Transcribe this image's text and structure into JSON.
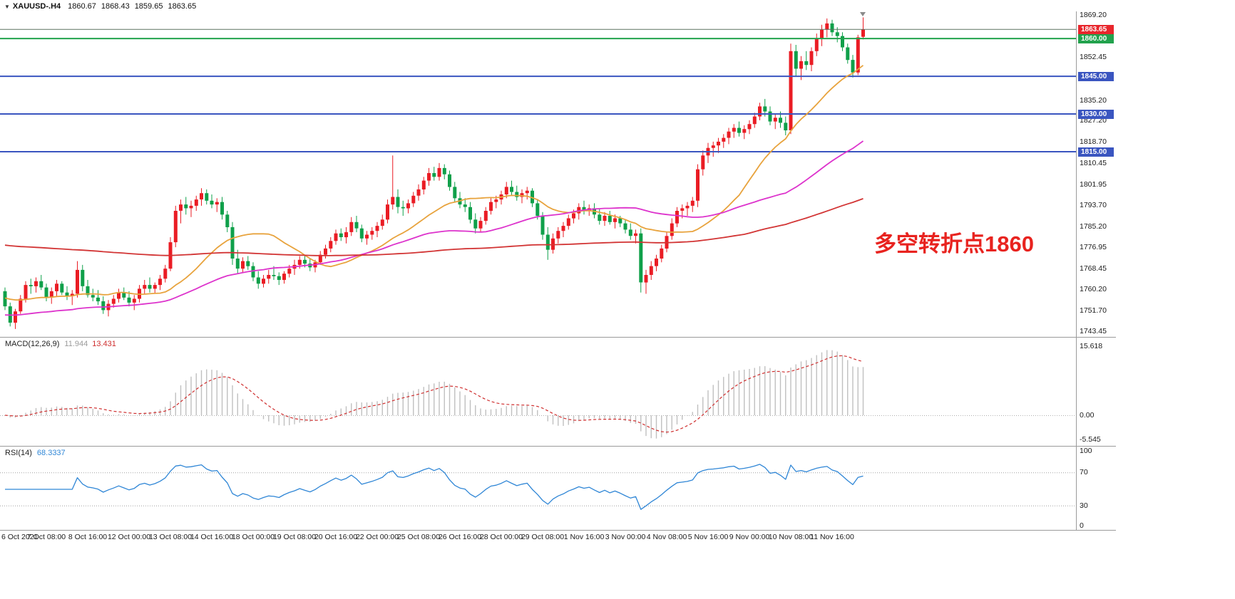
{
  "window": {
    "dropdown_glyph": "▼",
    "symbol": "XAUUSD-.H4",
    "open": "1860.67",
    "high": "1868.43",
    "low": "1859.65",
    "close": "1863.65"
  },
  "annotation": {
    "text": "多空转折点1860",
    "color": "#e8231f"
  },
  "chart_data": {
    "type": "candlestick",
    "symbol": "XAUUSD-",
    "timeframe": "H4",
    "title": "XAUUSD-.H4 1860.67 1868.43 1859.65 1863.65",
    "ylim": [
      1742.2,
      1870.8
    ],
    "grid": false,
    "colors": {
      "up": "#ea1c24",
      "down": "#0fa04a"
    },
    "price_ticks": [
      "1869.20",
      "1852.45",
      "1835.20",
      "1827.20",
      "1818.70",
      "1810.45",
      "1801.95",
      "1793.70",
      "1785.20",
      "1776.95",
      "1768.45",
      "1760.20",
      "1751.70",
      "1743.45"
    ],
    "badges": [
      {
        "text": "1863.65",
        "price": 1863.65,
        "color": "#e8262c"
      },
      {
        "text": "1860.00",
        "price": 1860.0,
        "color": "#22a24d"
      },
      {
        "text": "1845.00",
        "price": 1845.0,
        "color": "#3a55c0"
      },
      {
        "text": "1830.00",
        "price": 1830.0,
        "color": "#3a55c0"
      },
      {
        "text": "1815.00",
        "price": 1815.0,
        "color": "#3a55c0"
      }
    ],
    "hlines": [
      {
        "name": "bid-line-1863.65",
        "price": 1863.65,
        "color": "#5c7260",
        "width": 1
      },
      {
        "name": "hline-1860",
        "price": 1860.0,
        "color": "#22a24d",
        "width": 2
      },
      {
        "name": "hline-1845",
        "price": 1845.0,
        "color": "#3a55c0",
        "width": 2
      },
      {
        "name": "hline-1830",
        "price": 1830.0,
        "color": "#3a55c0",
        "width": 2
      },
      {
        "name": "hline-1815",
        "price": 1815.0,
        "color": "#3a55c0",
        "width": 2
      }
    ],
    "moving_averages": [
      {
        "period": 20,
        "color": "#e8a33d",
        "prehistory": 1757
      },
      {
        "period": 50,
        "color": "#dd33cc",
        "prehistory": 1750
      },
      {
        "period": 144,
        "color": "#d23434",
        "prehistory": 1778
      }
    ],
    "time_labels": [
      "6 Oct 2021",
      "7 Oct 08:00",
      "8 Oct 16:00",
      "12 Oct 00:00",
      "13 Oct 08:00",
      "14 Oct 16:00",
      "18 Oct 00:00",
      "19 Oct 08:00",
      "20 Oct 16:00",
      "22 Oct 00:00",
      "25 Oct 08:00",
      "26 Oct 16:00",
      "28 Oct 00:00",
      "29 Oct 08:00",
      "1 Nov 16:00",
      "3 Nov 00:00",
      "4 Nov 08:00",
      "5 Nov 16:00",
      "9 Nov 00:00",
      "10 Nov 08:00",
      "11 Nov 16:00"
    ],
    "bars_per_label": 8,
    "candles": [
      [
        1759.5,
        1761,
        1752,
        1753.5
      ],
      [
        1753.5,
        1755,
        1745.5,
        1747
      ],
      [
        1747,
        1752.5,
        1744.5,
        1751.5
      ],
      [
        1751.5,
        1758,
        1750.5,
        1756.5
      ],
      [
        1756.5,
        1763.5,
        1755,
        1762
      ],
      [
        1762,
        1764.5,
        1758.5,
        1761.5
      ],
      [
        1761.5,
        1765,
        1759,
        1763.5
      ],
      [
        1763.5,
        1766,
        1760,
        1761
      ],
      [
        1761,
        1762.5,
        1755.5,
        1757
      ],
      [
        1757,
        1761,
        1754.5,
        1759.5
      ],
      [
        1759.5,
        1764,
        1757.5,
        1762.5
      ],
      [
        1762.5,
        1763.5,
        1758,
        1759
      ],
      [
        1759,
        1761.5,
        1756,
        1757.5
      ],
      [
        1757.5,
        1760,
        1754,
        1758.5
      ],
      [
        1758.5,
        1771.5,
        1757,
        1768
      ],
      [
        1768,
        1770,
        1759.5,
        1761.5
      ],
      [
        1761.5,
        1764,
        1757,
        1758
      ],
      [
        1758,
        1760.5,
        1755.5,
        1757
      ],
      [
        1757,
        1760,
        1754,
        1755.5
      ],
      [
        1755.5,
        1757.5,
        1750.5,
        1752
      ],
      [
        1752,
        1756,
        1749.5,
        1754.5
      ],
      [
        1754.5,
        1758,
        1753,
        1756.5
      ],
      [
        1756.5,
        1760.5,
        1755,
        1759
      ],
      [
        1759,
        1761,
        1756,
        1757
      ],
      [
        1757,
        1759.5,
        1753.5,
        1755
      ],
      [
        1755,
        1758,
        1752,
        1756.5
      ],
      [
        1756.5,
        1762,
        1755,
        1760.5
      ],
      [
        1760.5,
        1764,
        1758.5,
        1762
      ],
      [
        1762,
        1765,
        1759,
        1760.5
      ],
      [
        1760.5,
        1763,
        1758.5,
        1762
      ],
      [
        1762,
        1766,
        1760,
        1764.5
      ],
      [
        1764.5,
        1770,
        1763,
        1768.5
      ],
      [
        1768.5,
        1781,
        1767.5,
        1779
      ],
      [
        1779,
        1793.5,
        1777,
        1791.5
      ],
      [
        1791.5,
        1796,
        1786.5,
        1794
      ],
      [
        1794,
        1797,
        1790,
        1792.5
      ],
      [
        1792.5,
        1795.5,
        1789,
        1793.5
      ],
      [
        1793.5,
        1797.5,
        1791.5,
        1796
      ],
      [
        1796,
        1800.5,
        1793.5,
        1798.5
      ],
      [
        1798.5,
        1800,
        1794,
        1795.5
      ],
      [
        1795.5,
        1798,
        1792.5,
        1794
      ],
      [
        1794,
        1796.5,
        1791,
        1795
      ],
      [
        1795,
        1797,
        1788,
        1790
      ],
      [
        1790,
        1791.5,
        1783,
        1785
      ],
      [
        1785,
        1787,
        1770,
        1772.5
      ],
      [
        1772.5,
        1776,
        1766.5,
        1768.5
      ],
      [
        1768.5,
        1773,
        1767,
        1771.5
      ],
      [
        1771.5,
        1773.5,
        1768,
        1769.5
      ],
      [
        1769.5,
        1771,
        1763.5,
        1765
      ],
      [
        1765,
        1767.5,
        1760.5,
        1762.5
      ],
      [
        1762.5,
        1766,
        1761,
        1764.5
      ],
      [
        1764.5,
        1768,
        1762.5,
        1766
      ],
      [
        1766,
        1769.5,
        1764,
        1765.5
      ],
      [
        1765.5,
        1767,
        1762,
        1764
      ],
      [
        1764,
        1767.5,
        1762.5,
        1766.5
      ],
      [
        1766.5,
        1770,
        1765,
        1768.5
      ],
      [
        1768.5,
        1772,
        1766,
        1770
      ],
      [
        1770,
        1773.5,
        1768.5,
        1772
      ],
      [
        1772,
        1774,
        1769,
        1770.5
      ],
      [
        1770.5,
        1772.5,
        1767.5,
        1769
      ],
      [
        1769,
        1772,
        1767,
        1771
      ],
      [
        1771,
        1775.5,
        1770,
        1774
      ],
      [
        1774,
        1778,
        1772.5,
        1776.5
      ],
      [
        1776.5,
        1781,
        1775,
        1779.5
      ],
      [
        1779.5,
        1784,
        1778,
        1782.5
      ],
      [
        1782.5,
        1784.5,
        1779.5,
        1781
      ],
      [
        1781,
        1785,
        1778.5,
        1783
      ],
      [
        1783,
        1789,
        1781.5,
        1787
      ],
      [
        1787,
        1789.5,
        1783,
        1784.5
      ],
      [
        1784.5,
        1786,
        1779,
        1780.5
      ],
      [
        1780.5,
        1783.5,
        1778,
        1782
      ],
      [
        1782,
        1785,
        1780,
        1783.5
      ],
      [
        1783.5,
        1787,
        1781,
        1785.5
      ],
      [
        1785.5,
        1790,
        1784,
        1788
      ],
      [
        1788,
        1796,
        1786.5,
        1794
      ],
      [
        1794,
        1813.5,
        1792,
        1797
      ],
      [
        1797,
        1800,
        1790.5,
        1793
      ],
      [
        1793,
        1795.5,
        1789.5,
        1792.5
      ],
      [
        1792.5,
        1796,
        1790.5,
        1794.5
      ],
      [
        1794.5,
        1799,
        1793,
        1797.5
      ],
      [
        1797.5,
        1802,
        1795.5,
        1800
      ],
      [
        1800,
        1805,
        1798,
        1803.5
      ],
      [
        1803.5,
        1808.5,
        1801.5,
        1806.5
      ],
      [
        1806.5,
        1809,
        1803.5,
        1805
      ],
      [
        1805,
        1810.5,
        1803.5,
        1808.5
      ],
      [
        1808.5,
        1810,
        1804,
        1806
      ],
      [
        1806,
        1807.5,
        1799.5,
        1801
      ],
      [
        1801,
        1803,
        1795,
        1796.5
      ],
      [
        1796.5,
        1799,
        1792.5,
        1794
      ],
      [
        1794,
        1796.5,
        1791,
        1793
      ],
      [
        1793,
        1795,
        1786.5,
        1788
      ],
      [
        1788,
        1790.5,
        1782.5,
        1784.5
      ],
      [
        1784.5,
        1789,
        1783,
        1787.5
      ],
      [
        1787.5,
        1793,
        1786,
        1791.5
      ],
      [
        1791.5,
        1796.5,
        1790,
        1795
      ],
      [
        1795,
        1797.5,
        1792.5,
        1796
      ],
      [
        1796,
        1799.5,
        1794,
        1798
      ],
      [
        1798,
        1803,
        1796.5,
        1801
      ],
      [
        1801,
        1803.5,
        1797.5,
        1799
      ],
      [
        1799,
        1801.5,
        1795.5,
        1797
      ],
      [
        1797,
        1800,
        1794.5,
        1798.5
      ],
      [
        1798.5,
        1801,
        1796,
        1799.5
      ],
      [
        1799.5,
        1800.5,
        1793,
        1794.5
      ],
      [
        1794.5,
        1796,
        1788,
        1789.5
      ],
      [
        1789.5,
        1791,
        1780,
        1782
      ],
      [
        1782,
        1785,
        1772,
        1776
      ],
      [
        1776,
        1782.5,
        1774.5,
        1780.5
      ],
      [
        1780.5,
        1785,
        1778.5,
        1783.5
      ],
      [
        1783.5,
        1787,
        1781,
        1785.5
      ],
      [
        1785.5,
        1790,
        1784,
        1788.5
      ],
      [
        1788.5,
        1792,
        1786.5,
        1790.5
      ],
      [
        1790.5,
        1794.5,
        1788,
        1793
      ],
      [
        1793,
        1795.5,
        1790,
        1791.5
      ],
      [
        1791.5,
        1794,
        1789.5,
        1792.5
      ],
      [
        1792.5,
        1794.5,
        1788.5,
        1790
      ],
      [
        1790,
        1792.5,
        1786,
        1787.5
      ],
      [
        1787.5,
        1791,
        1785.5,
        1789.5
      ],
      [
        1789.5,
        1791.5,
        1786,
        1787
      ],
      [
        1787,
        1790,
        1784.5,
        1788.5
      ],
      [
        1788.5,
        1789.5,
        1785,
        1786.5
      ],
      [
        1786.5,
        1788,
        1782.5,
        1784
      ],
      [
        1784,
        1786.5,
        1780,
        1781.5
      ],
      [
        1781.5,
        1784,
        1778.5,
        1782.5
      ],
      [
        1782.5,
        1784.5,
        1759,
        1763
      ],
      [
        1763,
        1768,
        1758.5,
        1766
      ],
      [
        1766,
        1771.5,
        1764,
        1769.5
      ],
      [
        1769.5,
        1774,
        1767.5,
        1772.5
      ],
      [
        1772.5,
        1778,
        1771,
        1776.5
      ],
      [
        1776.5,
        1783,
        1775,
        1781.5
      ],
      [
        1781.5,
        1788.5,
        1780,
        1786.5
      ],
      [
        1786.5,
        1793,
        1785,
        1791.5
      ],
      [
        1791.5,
        1794,
        1788.5,
        1792.5
      ],
      [
        1792.5,
        1795,
        1789.5,
        1793.5
      ],
      [
        1793.5,
        1797,
        1791,
        1795.5
      ],
      [
        1795.5,
        1810,
        1793,
        1808
      ],
      [
        1808,
        1815.5,
        1805.5,
        1813.5
      ],
      [
        1813.5,
        1818.5,
        1810.5,
        1816.5
      ],
      [
        1816.5,
        1819,
        1813,
        1817.5
      ],
      [
        1817.5,
        1820.5,
        1814.5,
        1819
      ],
      [
        1819,
        1822,
        1816.5,
        1820.5
      ],
      [
        1820.5,
        1824.5,
        1818,
        1823
      ],
      [
        1823,
        1826,
        1820.5,
        1824.5
      ],
      [
        1824.5,
        1827,
        1821,
        1822.5
      ],
      [
        1822.5,
        1825.5,
        1820,
        1824
      ],
      [
        1824,
        1827.5,
        1822,
        1826
      ],
      [
        1826,
        1830.5,
        1824.5,
        1829
      ],
      [
        1829,
        1834.5,
        1827.5,
        1833
      ],
      [
        1833,
        1836,
        1829,
        1831
      ],
      [
        1831,
        1833,
        1825.5,
        1827
      ],
      [
        1827,
        1830,
        1824,
        1828.5
      ],
      [
        1828.5,
        1831,
        1824.5,
        1826.5
      ],
      [
        1826.5,
        1829,
        1821.5,
        1823.5
      ],
      [
        1823.5,
        1858,
        1822,
        1855
      ],
      [
        1855,
        1857.5,
        1845,
        1848
      ],
      [
        1848,
        1853,
        1843.5,
        1851
      ],
      [
        1851,
        1855,
        1847.5,
        1849.5
      ],
      [
        1849.5,
        1856.5,
        1847,
        1855
      ],
      [
        1855,
        1862,
        1853,
        1860
      ],
      [
        1860,
        1865.5,
        1857,
        1863.5
      ],
      [
        1863.5,
        1868,
        1860.5,
        1866
      ],
      [
        1866,
        1867.5,
        1861,
        1862.5
      ],
      [
        1862.5,
        1864.5,
        1858.5,
        1861
      ],
      [
        1861,
        1862.5,
        1855,
        1856.5
      ],
      [
        1856.5,
        1858,
        1850,
        1851.5
      ],
      [
        1851.5,
        1853.5,
        1844.5,
        1846.5
      ],
      [
        1846.5,
        1861.5,
        1845.5,
        1860.5
      ],
      [
        1860.67,
        1868.43,
        1859.65,
        1863.65
      ]
    ],
    "indicators": {
      "macd": {
        "label": "MACD(12,26,9)",
        "main_value": "11.944",
        "signal_value": "13.431",
        "fast": 12,
        "slow": 26,
        "signal": 9,
        "axis_labels": [
          "15.618",
          "0.00",
          "-5.545"
        ],
        "histogram_color": "#c0c0c0",
        "signal_color": "#cf2e2e"
      },
      "rsi": {
        "label": "RSI(14)",
        "value": "68.3337",
        "period": 14,
        "color": "#2f86d6",
        "axis_labels": [
          "100",
          "70",
          "30",
          "0"
        ],
        "level_lines": [
          70,
          30
        ]
      }
    }
  }
}
